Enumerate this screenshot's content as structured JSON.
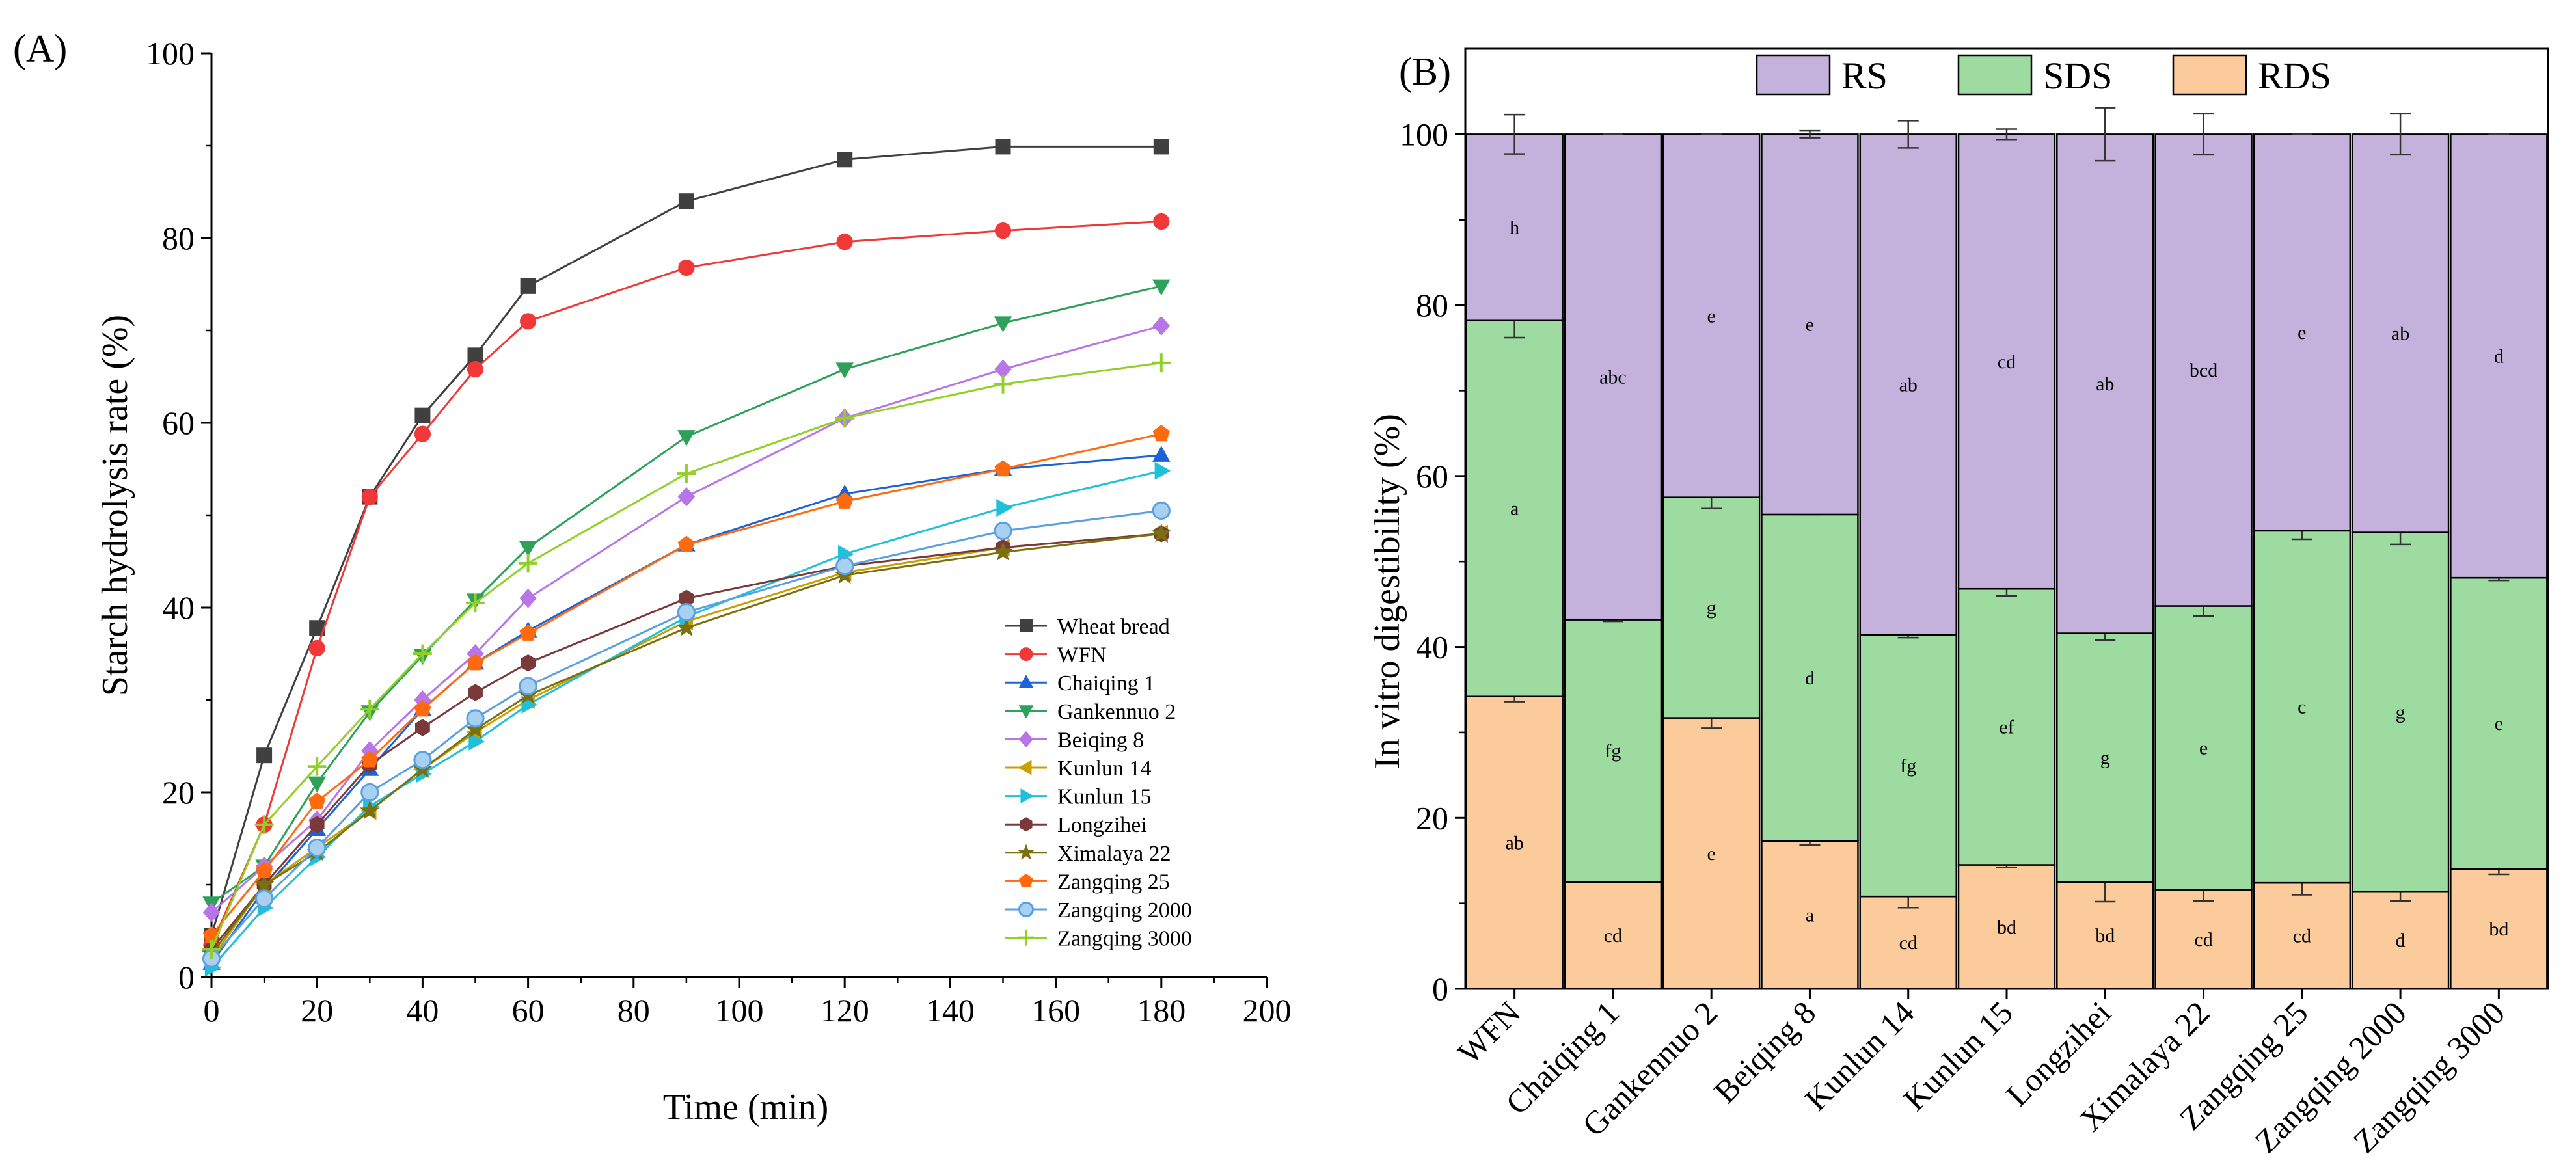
{
  "chart_data": [
    {
      "panel_label": "(A)",
      "type": "line",
      "xlabel": "Time (min)",
      "ylabel": "Starch hydrolysis rate (%)",
      "xlim": [
        0,
        200
      ],
      "ylim": [
        0,
        100
      ],
      "xticks": [
        0,
        20,
        40,
        60,
        80,
        100,
        120,
        140,
        160,
        180,
        200
      ],
      "yticks": [
        0,
        20,
        40,
        60,
        80,
        100
      ],
      "legend_position": "lower-right",
      "x": [
        0,
        10,
        20,
        30,
        40,
        50,
        60,
        90,
        120,
        150,
        180
      ],
      "series": [
        {
          "name": "Wheat bread",
          "color": "#404040",
          "marker": "square",
          "values": [
            4.5,
            24,
            37.8,
            52,
            60.8,
            67.3,
            74.8,
            84,
            88.5,
            89.9,
            89.9
          ]
        },
        {
          "name": "WFN",
          "color": "#f03838",
          "marker": "circle",
          "values": [
            3.5,
            16.5,
            35.6,
            52,
            58.8,
            65.8,
            71,
            76.8,
            79.6,
            80.8,
            81.8
          ]
        },
        {
          "name": "Chaiqing 1",
          "color": "#1a64d8",
          "marker": "triangle-up",
          "values": [
            1.5,
            9.5,
            16,
            22.5,
            29,
            34,
            37.5,
            46.8,
            52.3,
            55,
            56.5
          ]
        },
        {
          "name": "Gankennuo 2",
          "color": "#2da05a",
          "marker": "triangle-down",
          "values": [
            8,
            12,
            21,
            28.7,
            34.8,
            40.8,
            46.5,
            58.5,
            65.8,
            70.8,
            74.8
          ]
        },
        {
          "name": "Beiqing 8",
          "color": "#b875e8",
          "marker": "diamond",
          "values": [
            7,
            12,
            17,
            24.5,
            30,
            35,
            41,
            52,
            60.5,
            65.8,
            70.5
          ]
        },
        {
          "name": "Kunlun 14",
          "color": "#c8a000",
          "marker": "triangle-left",
          "values": [
            2,
            10,
            14,
            18,
            22.5,
            26.5,
            30,
            38.5,
            43.8,
            46.5,
            48
          ]
        },
        {
          "name": "Kunlun 15",
          "color": "#20c0d8",
          "marker": "triangle-right",
          "values": [
            1,
            7.5,
            13,
            18.5,
            22,
            25.5,
            29.5,
            39,
            45.8,
            50.8,
            54.8
          ]
        },
        {
          "name": "Longzihei",
          "color": "#7a3a3a",
          "marker": "hexagon",
          "values": [
            3,
            10,
            16.5,
            23,
            27,
            30.8,
            34,
            41,
            44.5,
            46.5,
            48
          ]
        },
        {
          "name": "Ximalaya 22",
          "color": "#7a7010",
          "marker": "star",
          "values": [
            2.5,
            10,
            13.5,
            18,
            22.5,
            26.8,
            30.5,
            37.8,
            43.5,
            46,
            48
          ]
        },
        {
          "name": "Zangqing 25",
          "color": "#ff6a10",
          "marker": "pentagon",
          "values": [
            4.5,
            11.5,
            19,
            23.5,
            29,
            34,
            37.2,
            46.8,
            51.5,
            55,
            58.8
          ]
        },
        {
          "name": "Zangqing 2000",
          "color": "#5aa0e0",
          "marker": "circle-open",
          "values": [
            2,
            8.5,
            14,
            20,
            23.5,
            28,
            31.5,
            39.5,
            44.5,
            48.3,
            50.5
          ]
        },
        {
          "name": "Zangqing 3000",
          "color": "#90d028",
          "marker": "plus",
          "values": [
            3,
            16.5,
            22.8,
            29,
            35,
            40.5,
            44.8,
            54.5,
            60.5,
            64.2,
            66.5
          ]
        }
      ]
    },
    {
      "panel_label": "(B)",
      "type": "stacked-bar",
      "ylabel": "In vitro digestibility (%)",
      "ylim": [
        0,
        110
      ],
      "yticks": [
        0,
        20,
        40,
        60,
        80,
        100
      ],
      "legend_position": "top",
      "categories": [
        "WFN",
        "Chaiqing 1",
        "Gankennuo 2",
        "Beiqing 8",
        "Kunlun 14",
        "Kunlun 15",
        "Longzihei",
        "Ximalaya 22",
        "Zangqing 25",
        "Zangqing 2000",
        "Zangqing 3000"
      ],
      "legend_order": [
        "RS",
        "SDS",
        "RDS"
      ],
      "series": [
        {
          "name": "RDS",
          "color": "#fbcb9c",
          "values": [
            34.2,
            12.5,
            31.7,
            17.3,
            10.8,
            14.5,
            12.5,
            11.6,
            12.4,
            11.4,
            14.0
          ],
          "errors": [
            0.6,
            0,
            1.2,
            0.5,
            1.3,
            0.3,
            2.3,
            1.3,
            1.4,
            1.1,
            0.6
          ],
          "letters": [
            "ab",
            "cd",
            "e",
            "a",
            "cd",
            "bd",
            "bd",
            "cd",
            "cd",
            "d",
            "bd"
          ]
        },
        {
          "name": "SDS",
          "color": "#9ddba1",
          "values": [
            44.0,
            30.7,
            25.8,
            38.2,
            30.6,
            32.3,
            29.1,
            33.2,
            41.2,
            42.0,
            34.1
          ],
          "errors": [
            2.0,
            0.2,
            1.3,
            0,
            0.3,
            0.8,
            0.8,
            1.2,
            1.0,
            1.4,
            0.3
          ],
          "letters": [
            "a",
            "fg",
            "g",
            "d",
            "fg",
            "ef",
            "g",
            "e",
            "c",
            "g",
            "e"
          ]
        },
        {
          "name": "RS",
          "color": "#c4b1dc",
          "values": [
            21.8,
            56.8,
            42.5,
            44.5,
            58.6,
            53.2,
            58.4,
            55.2,
            46.4,
            46.6,
            51.9
          ],
          "errors": [
            2.3,
            0,
            0,
            0.4,
            1.6,
            0.6,
            3.1,
            2.4,
            0,
            2.4,
            0
          ],
          "letters": [
            "h",
            "abc",
            "e",
            "e",
            "ab",
            "cd",
            "ab",
            "bcd",
            "e",
            "ab",
            "d"
          ]
        }
      ]
    }
  ]
}
